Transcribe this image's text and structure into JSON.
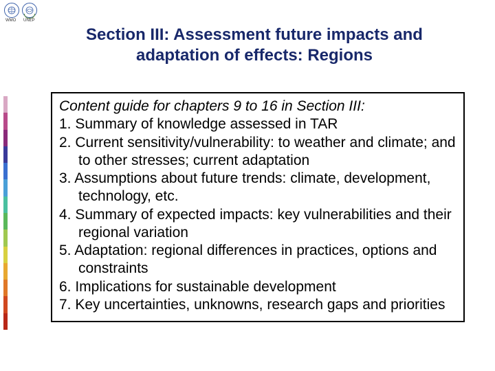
{
  "logos": {
    "wmo_label": "WMO",
    "unep_label": "UNEP"
  },
  "title_line1": "Section III: Assessment future impacts and",
  "title_line2": "adaptation of effects: Regions",
  "title_color": "#18286a",
  "content": {
    "heading": "Content guide for chapters 9 to 16 in Section III:",
    "items": [
      {
        "num": "1.",
        "text": "Summary of knowledge assessed in TAR"
      },
      {
        "num": "2.",
        "text": "Current sensitivity/vulnerability: to weather and climate; and to other stresses; current adaptation"
      },
      {
        "num": "3.",
        "text": "Assumptions about future trends: climate, development, technology, etc."
      },
      {
        "num": "4.",
        "text": "Summary of expected impacts: key vulnerabilities and their regional variation"
      },
      {
        "num": "5.",
        "text": "Adaptation: regional differences in practices, options and constraints"
      },
      {
        "num": "6.",
        "text": "Implications for sustainable development"
      },
      {
        "num": "7.",
        "text": "Key uncertainties, unknowns, research gaps and priorities"
      }
    ],
    "text_fontsize": 21,
    "border_color": "#000000"
  },
  "rainbow_colors": [
    "#d9a8c4",
    "#b84a8a",
    "#8a2a7a",
    "#3a3a9a",
    "#3a6fd0",
    "#4aa0d8",
    "#4ac0a0",
    "#5ab85a",
    "#a0c850",
    "#d8d040",
    "#e8a830",
    "#e07828",
    "#d04820",
    "#b82818"
  ],
  "background_color": "#ffffff"
}
